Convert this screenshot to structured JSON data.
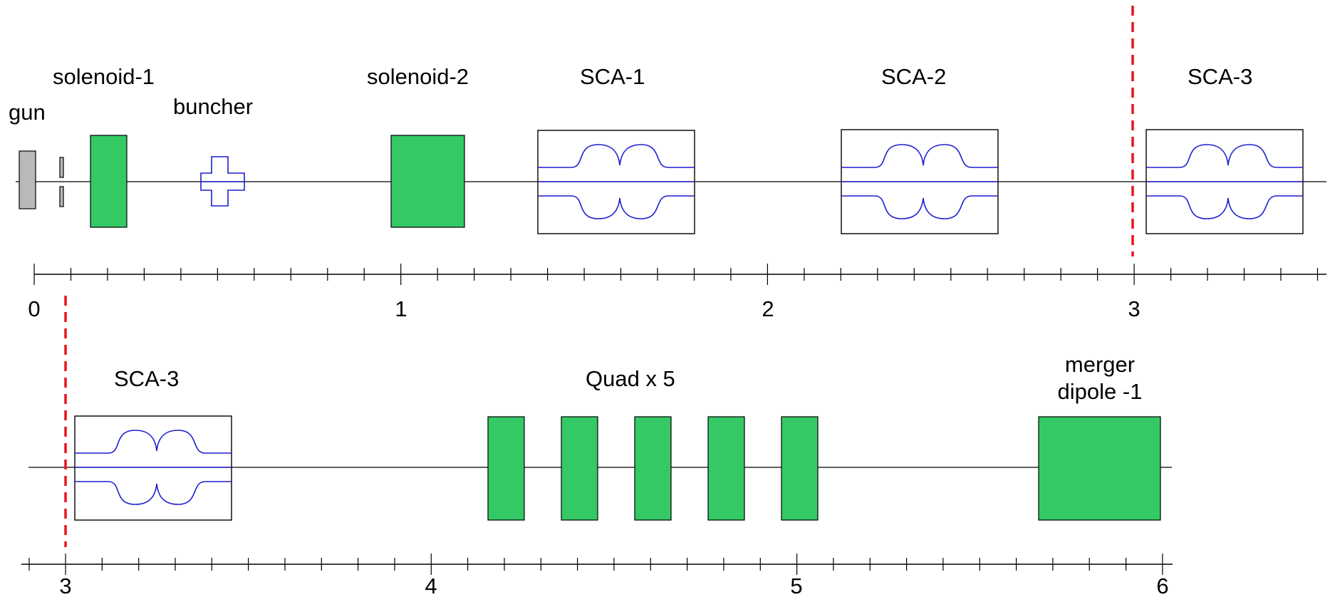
{
  "row1": {
    "labels": {
      "gun": "gun",
      "solenoid1": "solenoid-1",
      "buncher": "buncher",
      "solenoid2": "solenoid-2",
      "sca1": "SCA-1",
      "sca2": "SCA-2",
      "sca3": "SCA-3"
    },
    "axis": {
      "range": [
        0,
        3.5
      ],
      "major_ticks": [
        "0",
        "1",
        "2",
        "3"
      ]
    }
  },
  "row2": {
    "labels": {
      "sca3": "SCA-3",
      "quad": "Quad x 5",
      "merger_line1": "merger",
      "merger_line2": "dipole -1"
    },
    "axis": {
      "range": [
        3,
        6
      ],
      "major_ticks": [
        "3",
        "4",
        "5",
        "6"
      ]
    }
  },
  "colors": {
    "magnet": "#35C965",
    "cavity": "#1E1ED2",
    "cut_marker": "#E8151B",
    "gun": "#B9B9B9"
  }
}
